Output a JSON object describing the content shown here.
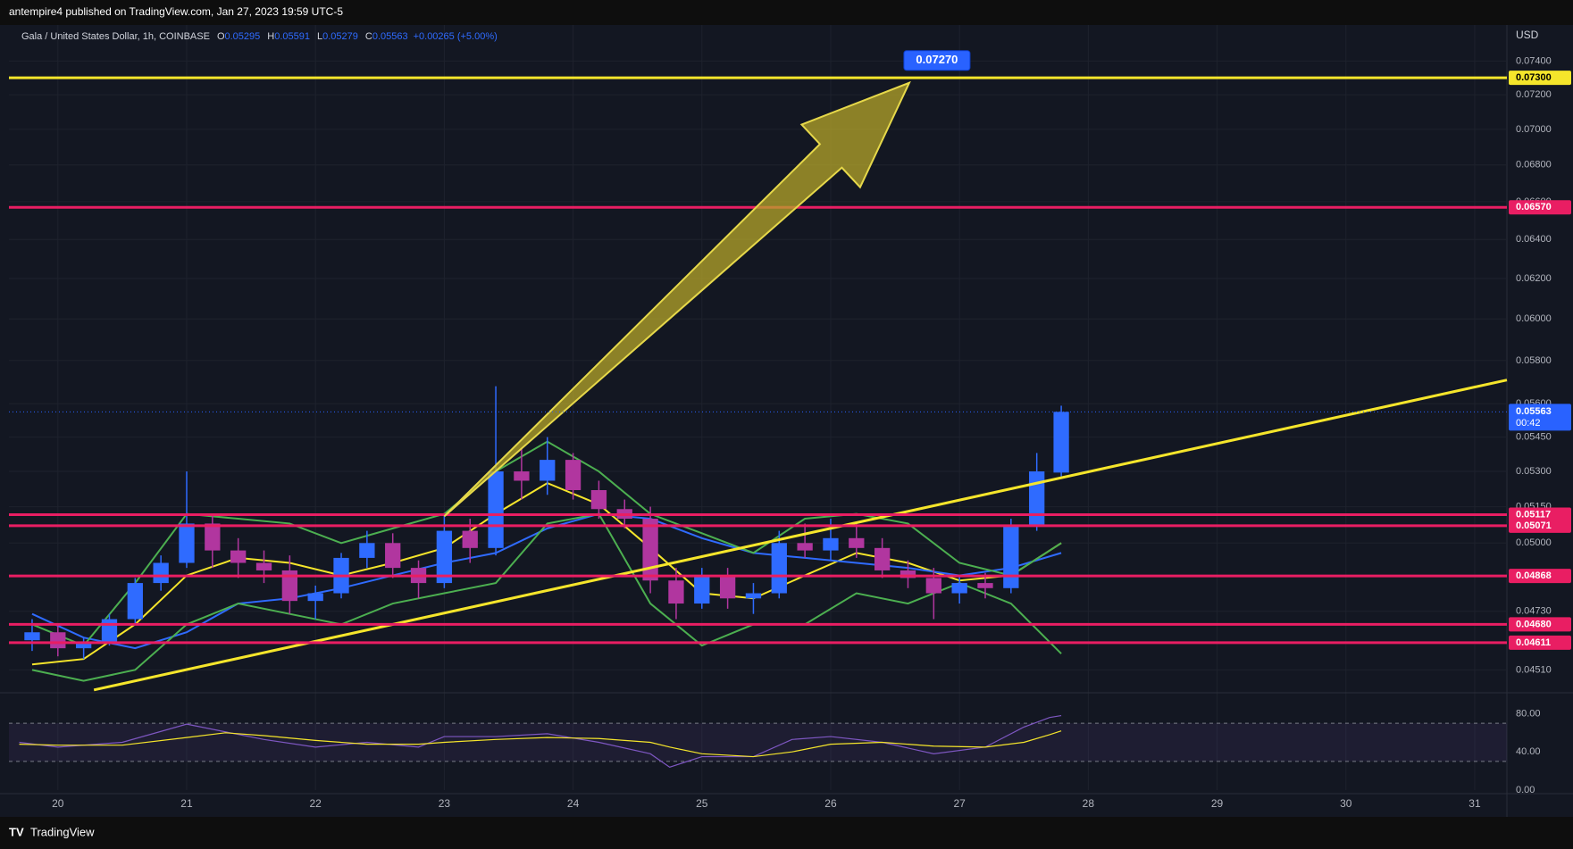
{
  "header": {
    "text": "antempire4 published on TradingView.com, Jan 27, 2023 19:59 UTC-5"
  },
  "footer": {
    "brand": "TradingView"
  },
  "chart_data": [
    {
      "type": "candlestick",
      "title": "Gala / United States Dollar, 1h, COINBASE",
      "ohlc_legend": [
        {
          "label": "O",
          "value": 0.05295
        },
        {
          "label": "H",
          "value": 0.05591
        },
        {
          "label": "L",
          "value": 0.05279
        },
        {
          "label": "C",
          "value": 0.05563
        }
      ],
      "change": "+0.00265 (+5.00%)",
      "unit": "USD",
      "log_scale": true,
      "grid": true,
      "up_color": "#2f6bff",
      "down_color": "#b1369f",
      "xlim": [
        19.62,
        31.25
      ],
      "xticks": [
        20,
        21,
        22,
        23,
        24,
        25,
        26,
        27,
        28,
        29,
        30,
        31
      ],
      "ylim": [
        0.0443,
        0.0762
      ],
      "yticks": [
        {
          "value": 0.074,
          "label": "0.07400"
        },
        {
          "value": 0.072,
          "label": "0.07200"
        },
        {
          "value": 0.07,
          "label": "0.07000"
        },
        {
          "value": 0.068,
          "label": "0.06800"
        },
        {
          "value": 0.066,
          "label": "0.06600"
        },
        {
          "value": 0.064,
          "label": "0.06400"
        },
        {
          "value": 0.062,
          "label": "0.06200"
        },
        {
          "value": 0.06,
          "label": "0.06000"
        },
        {
          "value": 0.058,
          "label": "0.05800"
        },
        {
          "value": 0.056,
          "label": "0.05600"
        },
        {
          "value": 0.0545,
          "label": "0.05450"
        },
        {
          "value": 0.053,
          "label": "0.05300"
        },
        {
          "value": 0.0515,
          "label": "0.05150"
        },
        {
          "value": 0.05,
          "label": "0.05000"
        },
        {
          "value": 0.0473,
          "label": "0.04730"
        },
        {
          "value": 0.0451,
          "label": "0.04510"
        }
      ],
      "x": [
        19.8,
        20.0,
        20.2,
        20.4,
        20.6,
        20.8,
        21.0,
        21.2,
        21.4,
        21.6,
        21.8,
        22.0,
        22.2,
        22.4,
        22.6,
        22.8,
        23.0,
        23.2,
        23.4,
        23.6,
        23.8,
        24.0,
        24.2,
        24.4,
        24.6,
        24.8,
        25.0,
        25.2,
        25.4,
        25.6,
        25.8,
        26.0,
        26.2,
        26.4,
        26.6,
        26.8,
        27.0,
        27.2,
        27.4,
        27.6,
        27.79
      ],
      "open": [
        0.0462,
        0.0465,
        0.0459,
        0.0461,
        0.047,
        0.0484,
        0.0492,
        0.0508,
        0.0497,
        0.0492,
        0.0489,
        0.0477,
        0.048,
        0.0494,
        0.05,
        0.049,
        0.0484,
        0.0505,
        0.0498,
        0.053,
        0.0526,
        0.0535,
        0.0522,
        0.0514,
        0.051,
        0.0485,
        0.0476,
        0.0487,
        0.0478,
        0.048,
        0.05,
        0.0497,
        0.0502,
        0.0498,
        0.0489,
        0.0486,
        0.048,
        0.0484,
        0.0482,
        0.0507,
        0.05295
      ],
      "high": [
        0.047,
        0.0468,
        0.0463,
        0.0472,
        0.0486,
        0.0495,
        0.053,
        0.0512,
        0.0502,
        0.0497,
        0.0495,
        0.0483,
        0.0496,
        0.0505,
        0.0504,
        0.0493,
        0.0512,
        0.051,
        0.0568,
        0.054,
        0.0545,
        0.0538,
        0.0526,
        0.0518,
        0.0515,
        0.049,
        0.049,
        0.049,
        0.0484,
        0.0505,
        0.0508,
        0.051,
        0.0508,
        0.0502,
        0.0493,
        0.049,
        0.0487,
        0.0488,
        0.051,
        0.0538,
        0.05591
      ],
      "low": [
        0.0458,
        0.0456,
        0.0455,
        0.046,
        0.0468,
        0.0481,
        0.049,
        0.049,
        0.0486,
        0.0484,
        0.0472,
        0.047,
        0.0478,
        0.049,
        0.0486,
        0.0478,
        0.0482,
        0.0492,
        0.0495,
        0.0518,
        0.052,
        0.0518,
        0.051,
        0.0506,
        0.048,
        0.047,
        0.0474,
        0.0474,
        0.0472,
        0.0478,
        0.0494,
        0.0493,
        0.0494,
        0.0486,
        0.0482,
        0.047,
        0.0476,
        0.0478,
        0.048,
        0.0505,
        0.05279
      ],
      "close": [
        0.0465,
        0.0459,
        0.0461,
        0.047,
        0.0484,
        0.0492,
        0.0508,
        0.0497,
        0.0492,
        0.0489,
        0.0477,
        0.048,
        0.0494,
        0.05,
        0.049,
        0.0484,
        0.0505,
        0.0498,
        0.053,
        0.0526,
        0.0535,
        0.0522,
        0.0514,
        0.051,
        0.0485,
        0.0476,
        0.0487,
        0.0478,
        0.048,
        0.05,
        0.0497,
        0.0502,
        0.0498,
        0.0489,
        0.0486,
        0.048,
        0.0484,
        0.0482,
        0.0507,
        0.053,
        0.05563
      ],
      "line_x": [
        19.8,
        20.2,
        20.6,
        21.0,
        21.4,
        21.8,
        22.2,
        22.6,
        23.0,
        23.4,
        23.8,
        24.2,
        24.6,
        25.0,
        25.4,
        25.8,
        26.2,
        26.6,
        27.0,
        27.4,
        27.79
      ],
      "lines": [
        {
          "color": "#f5e52b",
          "values": [
            0.0453,
            0.0455,
            0.0468,
            0.0487,
            0.0494,
            0.0492,
            0.0487,
            0.0492,
            0.0498,
            0.0512,
            0.0525,
            0.0516,
            0.0498,
            0.048,
            0.0478,
            0.0487,
            0.0496,
            0.0492,
            0.0485,
            0.0487,
            0.05
          ]
        },
        {
          "color": "#2f6bff",
          "values": [
            0.0472,
            0.0463,
            0.0459,
            0.0465,
            0.0476,
            0.0478,
            0.0482,
            0.0487,
            0.0492,
            0.0496,
            0.0506,
            0.0512,
            0.051,
            0.0502,
            0.0496,
            0.0494,
            0.0492,
            0.049,
            0.0487,
            0.049,
            0.0496
          ]
        },
        {
          "color": "#4caf50",
          "values": [
            0.0468,
            0.046,
            0.0484,
            0.0512,
            0.051,
            0.0508,
            0.05,
            0.0506,
            0.0512,
            0.053,
            0.0543,
            0.053,
            0.0512,
            0.0504,
            0.0496,
            0.051,
            0.0512,
            0.0508,
            0.0492,
            0.0487,
            0.05
          ]
        },
        {
          "color": "#4caf50",
          "values": [
            0.0451,
            0.0447,
            0.0451,
            0.0468,
            0.0476,
            0.0472,
            0.0468,
            0.0476,
            0.048,
            0.0484,
            0.0508,
            0.0512,
            0.0476,
            0.046,
            0.0468,
            0.0468,
            0.048,
            0.0476,
            0.0484,
            0.0476,
            0.0457
          ]
        }
      ],
      "levels": [
        {
          "value": 0.073,
          "label": "0.07300",
          "color": "#f5e52b"
        },
        {
          "value": 0.0657,
          "label": "0.06570",
          "color": "#e91e63"
        },
        {
          "value": 0.05117,
          "label": "0.05117",
          "color": "#e91e63"
        },
        {
          "value": 0.05071,
          "label": "0.05071",
          "color": "#e91e63"
        },
        {
          "value": 0.04868,
          "label": "0.04868",
          "color": "#e91e63"
        },
        {
          "value": 0.0468,
          "label": "0.04680",
          "color": "#e91e63"
        },
        {
          "value": 0.04611,
          "label": "0.04611",
          "color": "#e91e63"
        }
      ],
      "last": {
        "value": 0.05563,
        "label": "0.05563",
        "countdown": "00:42",
        "color": "#2962ff"
      },
      "trendline": {
        "color": "#f5e52b",
        "x": [
          20.28,
          31.25
        ],
        "values": [
          0.04437,
          0.05709
        ]
      },
      "arrow": {
        "color": "#b5a52a",
        "x": [
          23.0,
          26.61
        ],
        "values": [
          0.0511,
          0.0727
        ],
        "callout": {
          "value": 0.0727,
          "label": "0.07270"
        }
      }
    },
    {
      "type": "line",
      "xlim": [
        19.62,
        31.25
      ],
      "ylim": [
        0,
        100
      ],
      "yticks": [
        {
          "value": 80,
          "label": "80.00"
        },
        {
          "value": 40,
          "label": "40.00"
        },
        {
          "value": 0,
          "label": "0.00"
        }
      ],
      "band": [
        30,
        70
      ],
      "x": [
        19.7,
        20.0,
        20.5,
        21.0,
        21.3,
        21.6,
        22.0,
        22.4,
        22.8,
        23.0,
        23.4,
        23.8,
        24.2,
        24.6,
        24.75,
        25.0,
        25.4,
        25.7,
        26.0,
        26.4,
        26.8,
        27.2,
        27.5,
        27.7,
        27.79
      ],
      "series": [
        {
          "color": "#7e57c2",
          "values": [
            50,
            45,
            50,
            69,
            61,
            53,
            45,
            50,
            45,
            56,
            56,
            59,
            50,
            38,
            24,
            35,
            35,
            53,
            56,
            50,
            38,
            45,
            66,
            76,
            78
          ]
        },
        {
          "color": "#f5e52b",
          "values": [
            48,
            47,
            47,
            55,
            60,
            57,
            52,
            48,
            48,
            50,
            53,
            55,
            54,
            50,
            45,
            38,
            35,
            40,
            48,
            50,
            46,
            45,
            50,
            58,
            62
          ]
        }
      ]
    }
  ]
}
